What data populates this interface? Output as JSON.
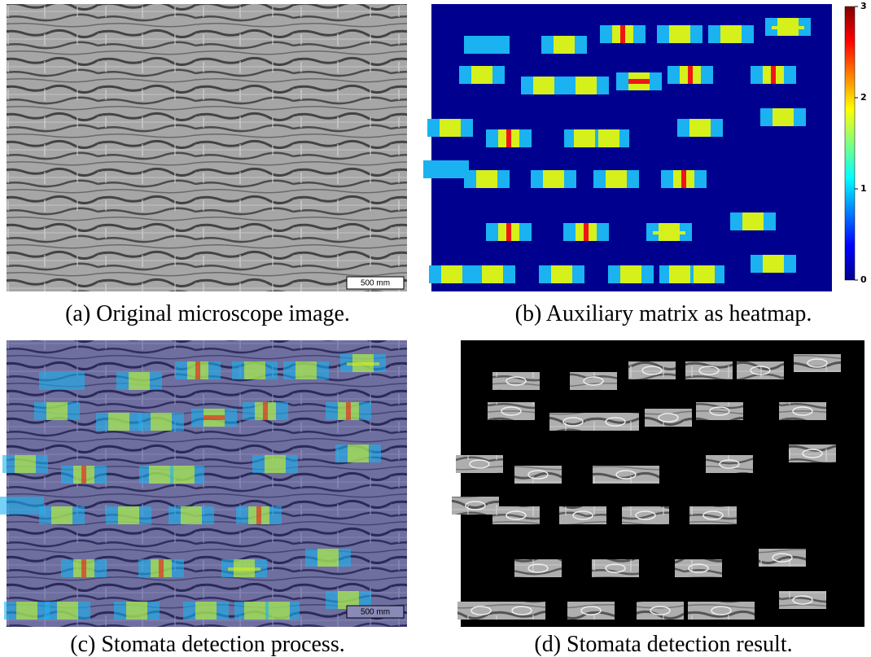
{
  "panels": [
    {
      "caption": "(a) Original microscope image.",
      "scale_bar": "500 mm"
    },
    {
      "caption": "(b) Auxiliary matrix as heatmap.",
      "colorbar_ticks": [
        "0",
        "1",
        "2",
        "3"
      ]
    },
    {
      "caption": "(c) Stomata detection process.",
      "scale_bar": "500 mm"
    },
    {
      "caption": "(d) Stomata detection result."
    }
  ]
}
